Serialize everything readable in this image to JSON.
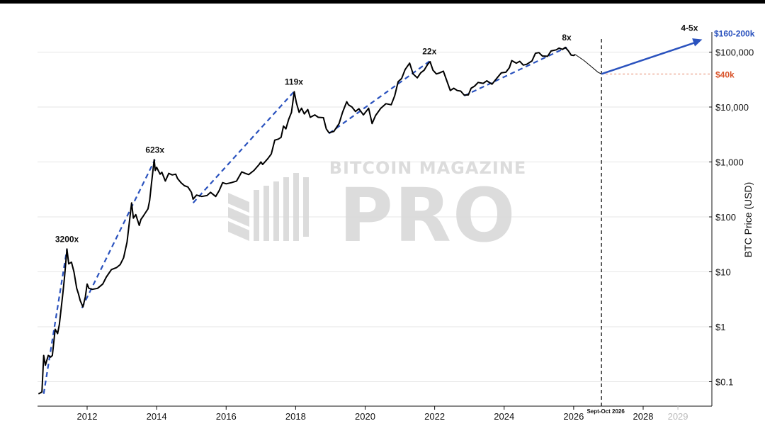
{
  "chart_data": {
    "type": "line",
    "title": "",
    "ylabel": "BTC Price (USD)",
    "y_scale": "log",
    "ylim": [
      0.03,
      250000
    ],
    "xlim": [
      2010.6,
      2030.0
    ],
    "watermark": {
      "top": "BITCOIN MAGAZINE",
      "main": "PRO"
    },
    "x_ticks": [
      {
        "value": 2012,
        "label": "2012"
      },
      {
        "value": 2014,
        "label": "2014"
      },
      {
        "value": 2016,
        "label": "2016"
      },
      {
        "value": 2018,
        "label": "2018"
      },
      {
        "value": 2020,
        "label": "2020"
      },
      {
        "value": 2022,
        "label": "2022"
      },
      {
        "value": 2024,
        "label": "2024"
      },
      {
        "value": 2026,
        "label": "2026"
      },
      {
        "value": 2028,
        "label": "2028"
      },
      {
        "value": 2029,
        "label": "2029",
        "muted": true
      }
    ],
    "y_ticks": [
      {
        "value": 0.1,
        "label": "$0.1"
      },
      {
        "value": 1,
        "label": "$1"
      },
      {
        "value": 10,
        "label": "$10"
      },
      {
        "value": 100,
        "label": "$100"
      },
      {
        "value": 1000,
        "label": "$1,000"
      },
      {
        "value": 10000,
        "label": "$10,000"
      },
      {
        "value": 100000,
        "label": "$100,000"
      }
    ],
    "price_series": [
      [
        2010.6,
        0.06
      ],
      [
        2010.7,
        0.065
      ],
      [
        2010.75,
        0.3
      ],
      [
        2010.8,
        0.2
      ],
      [
        2010.88,
        0.3
      ],
      [
        2010.95,
        0.28
      ],
      [
        2011.0,
        0.3
      ],
      [
        2011.08,
        0.9
      ],
      [
        2011.15,
        0.75
      ],
      [
        2011.2,
        1.1
      ],
      [
        2011.3,
        4
      ],
      [
        2011.35,
        8
      ],
      [
        2011.42,
        26
      ],
      [
        2011.47,
        14
      ],
      [
        2011.55,
        15
      ],
      [
        2011.62,
        10
      ],
      [
        2011.7,
        5
      ],
      [
        2011.75,
        4
      ],
      [
        2011.8,
        3
      ],
      [
        2011.88,
        2.3
      ],
      [
        2011.95,
        3.5
      ],
      [
        2012.0,
        6
      ],
      [
        2012.05,
        5
      ],
      [
        2012.15,
        4.8
      ],
      [
        2012.3,
        5
      ],
      [
        2012.45,
        6
      ],
      [
        2012.55,
        8
      ],
      [
        2012.7,
        11
      ],
      [
        2012.85,
        12
      ],
      [
        2012.95,
        13.5
      ],
      [
        2013.05,
        18
      ],
      [
        2013.15,
        35
      ],
      [
        2013.28,
        180
      ],
      [
        2013.33,
        95
      ],
      [
        2013.4,
        110
      ],
      [
        2013.5,
        70
      ],
      [
        2013.55,
        90
      ],
      [
        2013.6,
        100
      ],
      [
        2013.7,
        125
      ],
      [
        2013.75,
        140
      ],
      [
        2013.8,
        200
      ],
      [
        2013.85,
        400
      ],
      [
        2013.93,
        1100
      ],
      [
        2013.96,
        700
      ],
      [
        2014.0,
        800
      ],
      [
        2014.1,
        600
      ],
      [
        2014.15,
        650
      ],
      [
        2014.25,
        450
      ],
      [
        2014.35,
        620
      ],
      [
        2014.45,
        580
      ],
      [
        2014.55,
        600
      ],
      [
        2014.6,
        500
      ],
      [
        2014.7,
        420
      ],
      [
        2014.8,
        370
      ],
      [
        2014.9,
        350
      ],
      [
        2015.0,
        280
      ],
      [
        2015.05,
        210
      ],
      [
        2015.15,
        250
      ],
      [
        2015.3,
        235
      ],
      [
        2015.45,
        245
      ],
      [
        2015.55,
        280
      ],
      [
        2015.7,
        235
      ],
      [
        2015.8,
        300
      ],
      [
        2015.9,
        420
      ],
      [
        2016.0,
        400
      ],
      [
        2016.15,
        420
      ],
      [
        2016.3,
        450
      ],
      [
        2016.45,
        660
      ],
      [
        2016.55,
        620
      ],
      [
        2016.65,
        590
      ],
      [
        2016.8,
        700
      ],
      [
        2016.95,
        900
      ],
      [
        2017.0,
        1000
      ],
      [
        2017.05,
        900
      ],
      [
        2017.2,
        1150
      ],
      [
        2017.3,
        1400
      ],
      [
        2017.4,
        2500
      ],
      [
        2017.5,
        2600
      ],
      [
        2017.58,
        2800
      ],
      [
        2017.65,
        4500
      ],
      [
        2017.72,
        4000
      ],
      [
        2017.8,
        6000
      ],
      [
        2017.88,
        8000
      ],
      [
        2017.96,
        19000
      ],
      [
        2018.02,
        12000
      ],
      [
        2018.1,
        8000
      ],
      [
        2018.17,
        9500
      ],
      [
        2018.25,
        7500
      ],
      [
        2018.35,
        9000
      ],
      [
        2018.42,
        6500
      ],
      [
        2018.55,
        7200
      ],
      [
        2018.65,
        6500
      ],
      [
        2018.8,
        6400
      ],
      [
        2018.88,
        4000
      ],
      [
        2018.96,
        3400
      ],
      [
        2019.1,
        3600
      ],
      [
        2019.25,
        5000
      ],
      [
        2019.35,
        8000
      ],
      [
        2019.47,
        12500
      ],
      [
        2019.52,
        11000
      ],
      [
        2019.62,
        10000
      ],
      [
        2019.72,
        8300
      ],
      [
        2019.82,
        9300
      ],
      [
        2019.95,
        7200
      ],
      [
        2020.1,
        9500
      ],
      [
        2020.2,
        5000
      ],
      [
        2020.3,
        7000
      ],
      [
        2020.45,
        9500
      ],
      [
        2020.6,
        11500
      ],
      [
        2020.75,
        11000
      ],
      [
        2020.85,
        16000
      ],
      [
        2020.95,
        29000
      ],
      [
        2021.05,
        33000
      ],
      [
        2021.15,
        48000
      ],
      [
        2021.28,
        63000
      ],
      [
        2021.38,
        40000
      ],
      [
        2021.5,
        34000
      ],
      [
        2021.6,
        42000
      ],
      [
        2021.7,
        47000
      ],
      [
        2021.8,
        60000
      ],
      [
        2021.87,
        67000
      ],
      [
        2021.95,
        47000
      ],
      [
        2022.05,
        40000
      ],
      [
        2022.15,
        42000
      ],
      [
        2022.25,
        45000
      ],
      [
        2022.35,
        30000
      ],
      [
        2022.45,
        20000
      ],
      [
        2022.55,
        22000
      ],
      [
        2022.65,
        20000
      ],
      [
        2022.75,
        19500
      ],
      [
        2022.85,
        16500
      ],
      [
        2022.97,
        16600
      ],
      [
        2023.05,
        22000
      ],
      [
        2023.15,
        24000
      ],
      [
        2023.25,
        28000
      ],
      [
        2023.4,
        27000
      ],
      [
        2023.5,
        30000
      ],
      [
        2023.65,
        26000
      ],
      [
        2023.8,
        34000
      ],
      [
        2023.92,
        42000
      ],
      [
        2024.05,
        43000
      ],
      [
        2024.15,
        52000
      ],
      [
        2024.22,
        70000
      ],
      [
        2024.35,
        63000
      ],
      [
        2024.45,
        68000
      ],
      [
        2024.55,
        58000
      ],
      [
        2024.65,
        60000
      ],
      [
        2024.8,
        69000
      ],
      [
        2024.9,
        95000
      ],
      [
        2025.0,
        98000
      ],
      [
        2025.1,
        85000
      ],
      [
        2025.25,
        84000
      ],
      [
        2025.35,
        105000
      ],
      [
        2025.5,
        110000
      ],
      [
        2025.58,
        118000
      ],
      [
        2025.68,
        112000
      ],
      [
        2025.76,
        122000
      ],
      [
        2025.85,
        105000
      ],
      [
        2025.93,
        88000
      ],
      [
        2026.0,
        87000
      ],
      [
        2026.05,
        90000
      ]
    ],
    "projection_path": [
      [
        2026.05,
        90000
      ],
      [
        2026.3,
        70000
      ],
      [
        2026.5,
        55000
      ],
      [
        2026.7,
        43000
      ],
      [
        2026.8,
        40000
      ]
    ],
    "cycle_trends": [
      {
        "from": [
          2010.75,
          0.06
        ],
        "to": [
          2011.42,
          26
        ],
        "label": "3200x"
      },
      {
        "from": [
          2011.85,
          2.2
        ],
        "to": [
          2013.95,
          1100
        ],
        "label": "623x"
      },
      {
        "from": [
          2015.05,
          180
        ],
        "to": [
          2017.95,
          19000
        ],
        "label": "119x"
      },
      {
        "from": [
          2018.96,
          3300
        ],
        "to": [
          2021.85,
          68000
        ],
        "label": "22x"
      },
      {
        "from": [
          2022.85,
          16000
        ],
        "to": [
          2025.8,
          122000
        ],
        "label": "8x"
      }
    ],
    "forecast": {
      "from": [
        2026.8,
        40000
      ],
      "to": [
        2029.7,
        170000
      ],
      "label": "4-5x"
    },
    "marker": {
      "x": 2026.8,
      "label": "Sept-Oct 2026"
    },
    "level_40k": {
      "value": 40000,
      "label": "$40k"
    },
    "level_top": {
      "value": 170000,
      "label": "$160-200k"
    },
    "colors": {
      "price": "#000000",
      "trend": "#2a52be",
      "forecast": "#2a52be",
      "level": "#d9542b",
      "grid": "#e6e6e6"
    }
  }
}
